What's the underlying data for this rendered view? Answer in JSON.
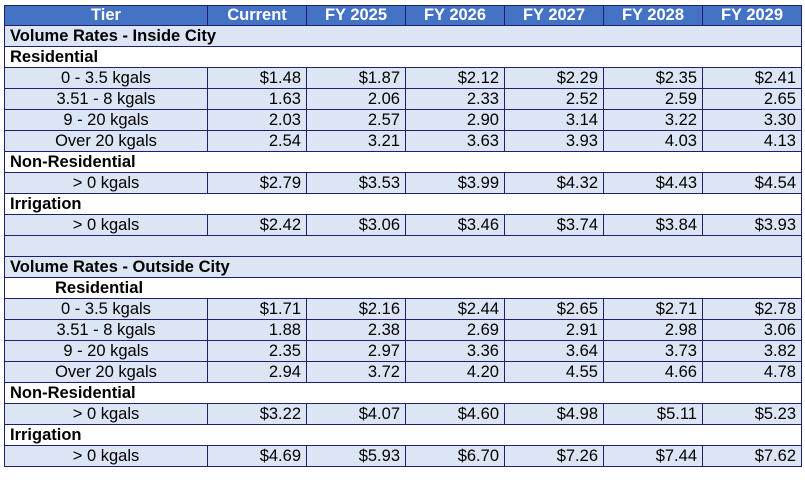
{
  "headers": [
    "Tier",
    "Current",
    "FY 2025",
    "FY 2026",
    "FY 2027",
    "FY 2028",
    "FY 2029"
  ],
  "inside": {
    "title": "Volume Rates - Inside City",
    "residential": {
      "label": "Residential",
      "rows": [
        {
          "tier": "0 - 3.5 kgals",
          "values": [
            "$1.48",
            "$1.87",
            "$2.12",
            "$2.29",
            "$2.35",
            "$2.41"
          ]
        },
        {
          "tier": "3.51 - 8 kgals",
          "values": [
            "1.63",
            "2.06",
            "2.33",
            "2.52",
            "2.59",
            "2.65"
          ]
        },
        {
          "tier": "9 - 20 kgals",
          "values": [
            "2.03",
            "2.57",
            "2.90",
            "3.14",
            "3.22",
            "3.30"
          ]
        },
        {
          "tier": "Over 20 kgals",
          "values": [
            "2.54",
            "3.21",
            "3.63",
            "3.93",
            "4.03",
            "4.13"
          ]
        }
      ]
    },
    "nonresidential": {
      "label": "Non-Residential",
      "rows": [
        {
          "tier": "> 0 kgals",
          "values": [
            "$2.79",
            "$3.53",
            "$3.99",
            "$4.32",
            "$4.43",
            "$4.54"
          ]
        }
      ]
    },
    "irrigation": {
      "label": "Irrigation",
      "rows": [
        {
          "tier": "> 0 kgals",
          "values": [
            "$2.42",
            "$3.06",
            "$3.46",
            "$3.74",
            "$3.84",
            "$3.93"
          ]
        }
      ]
    }
  },
  "outside": {
    "title": "Volume Rates - Outside City",
    "residential": {
      "label": "Residential",
      "rows": [
        {
          "tier": "0 - 3.5 kgals",
          "values": [
            "$1.71",
            "$2.16",
            "$2.44",
            "$2.65",
            "$2.71",
            "$2.78"
          ]
        },
        {
          "tier": "3.51 - 8 kgals",
          "values": [
            "1.88",
            "2.38",
            "2.69",
            "2.91",
            "2.98",
            "3.06"
          ]
        },
        {
          "tier": "9 - 20 kgals",
          "values": [
            "2.35",
            "2.97",
            "3.36",
            "3.64",
            "3.73",
            "3.82"
          ]
        },
        {
          "tier": "Over 20 kgals",
          "values": [
            "2.94",
            "3.72",
            "4.20",
            "4.55",
            "4.66",
            "4.78"
          ]
        }
      ]
    },
    "nonresidential": {
      "label": "Non-Residential",
      "rows": [
        {
          "tier": "> 0 kgals",
          "values": [
            "$3.22",
            "$4.07",
            "$4.60",
            "$4.98",
            "$5.11",
            "$5.23"
          ]
        }
      ]
    },
    "irrigation": {
      "label": "Irrigation",
      "rows": [
        {
          "tier": "> 0 kgals",
          "values": [
            "$4.69",
            "$5.93",
            "$6.70",
            "$7.26",
            "$7.44",
            "$7.62"
          ]
        }
      ]
    }
  }
}
